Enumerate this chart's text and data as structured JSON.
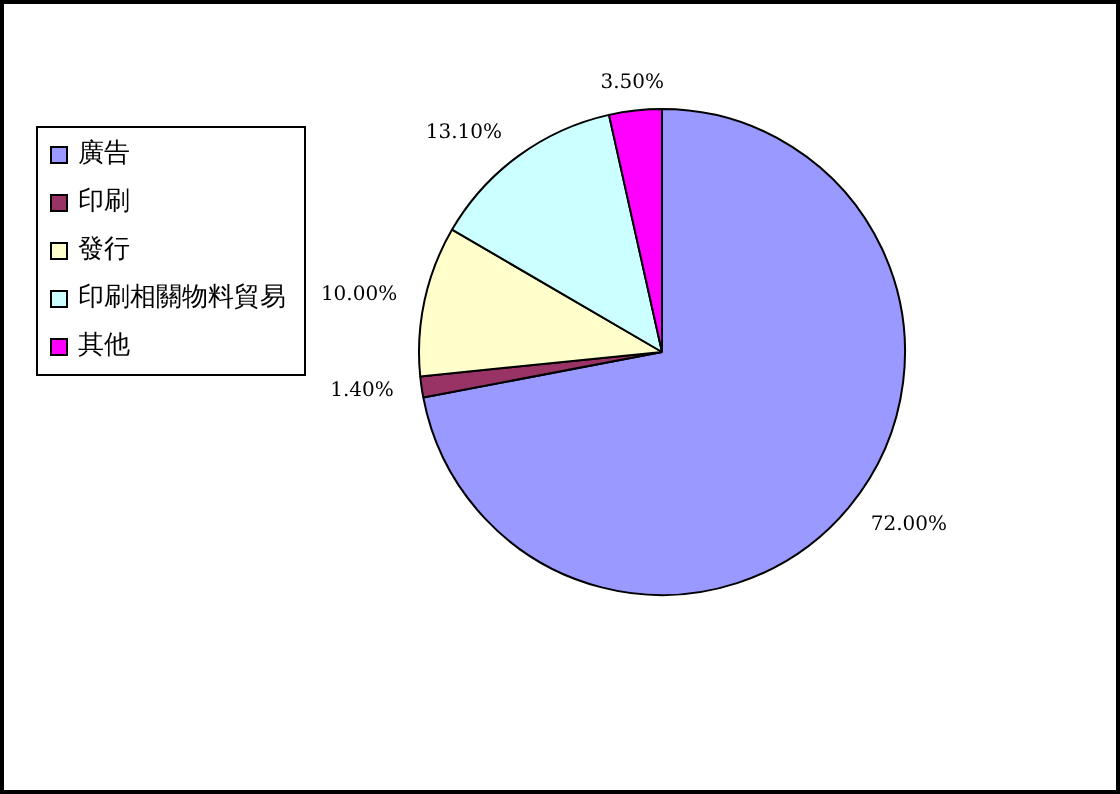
{
  "chart_data": {
    "type": "pie",
    "categories": [
      "廣告",
      "印刷",
      "發行",
      "印刷相關物料貿易",
      "其他"
    ],
    "values": [
      72,
      1.4,
      10,
      13.1,
      3.5
    ],
    "colors": [
      "#9999ff",
      "#993366",
      "#ffffcc",
      "#ccffff",
      "#ff00ff"
    ],
    "value_labels": [
      "72.00%",
      "1.40%",
      "10.00%",
      "13.10%",
      "3.50%"
    ],
    "legend": "left"
  }
}
